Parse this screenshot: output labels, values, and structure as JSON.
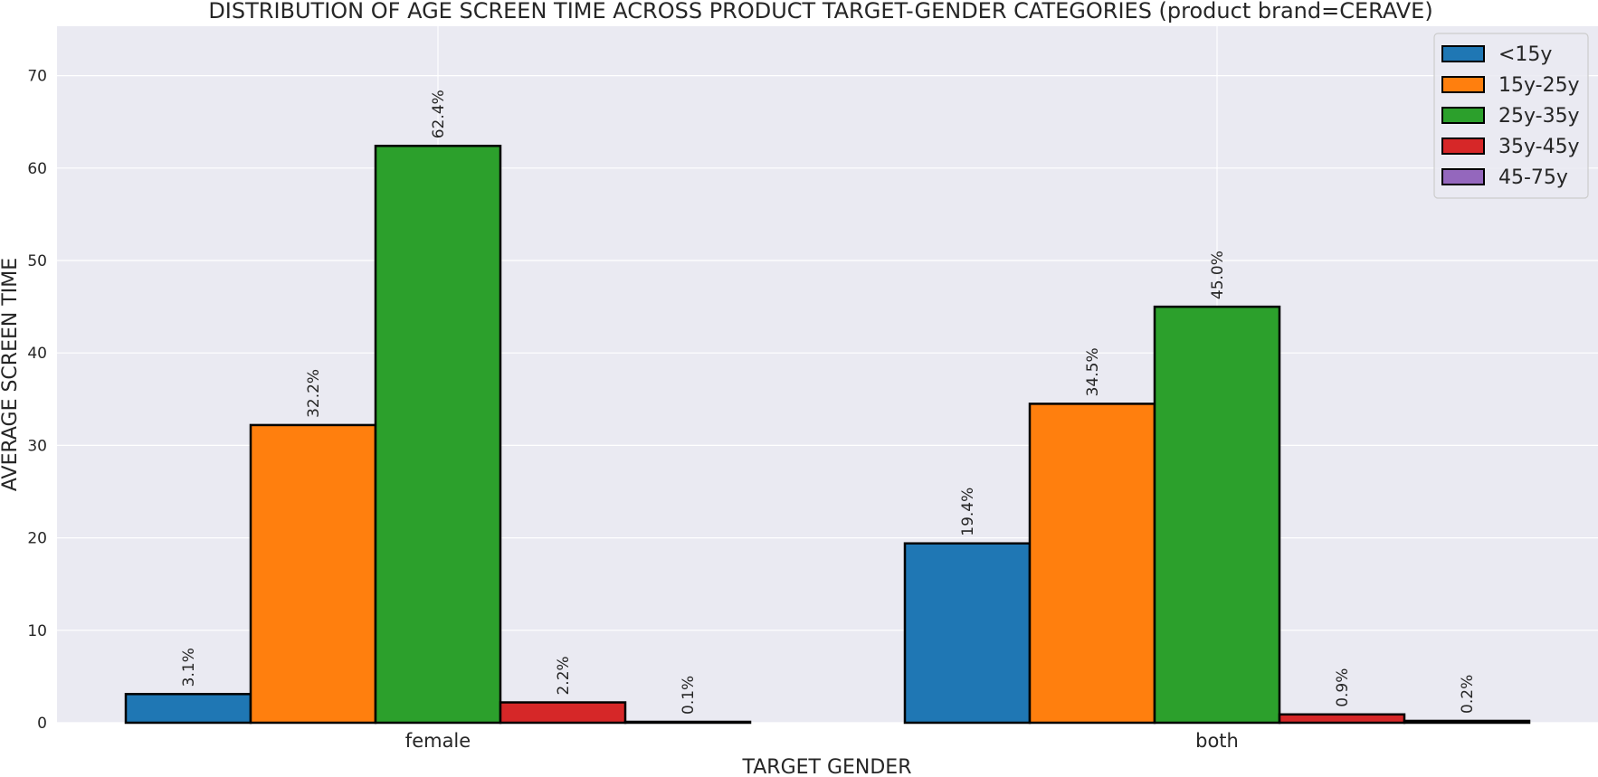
{
  "chart_data": {
    "type": "bar",
    "title": "DISTRIBUTION OF AGE SCREEN TIME ACROSS PRODUCT TARGET-GENDER CATEGORIES (product brand=CERAVE)",
    "xlabel": "TARGET GENDER",
    "ylabel": "AVERAGE SCREEN TIME",
    "categories": [
      "female",
      "both"
    ],
    "ylim": [
      0,
      75
    ],
    "yticks": [
      0,
      10,
      20,
      30,
      40,
      50,
      60,
      70
    ],
    "grid": true,
    "legend_position": "top-right",
    "series": [
      {
        "name": "<15y",
        "color": "#1f77b4",
        "values": [
          3.1,
          19.4
        ],
        "labels": [
          "3.1%",
          "19.4%"
        ]
      },
      {
        "name": "15y-25y",
        "color": "#ff7f0e",
        "values": [
          32.2,
          34.5
        ],
        "labels": [
          "32.2%",
          "34.5%"
        ]
      },
      {
        "name": "25y-35y",
        "color": "#2ca02c",
        "values": [
          62.4,
          45.0
        ],
        "labels": [
          "62.4%",
          "45.0%"
        ]
      },
      {
        "name": "35y-45y",
        "color": "#d62728",
        "values": [
          2.2,
          0.9
        ],
        "labels": [
          "2.2%",
          "0.9%"
        ]
      },
      {
        "name": "45-75y",
        "color": "#9467bd",
        "values": [
          0.1,
          0.2
        ],
        "labels": [
          "0.1%",
          "0.2%"
        ]
      }
    ]
  },
  "style": {
    "plot_background": "#eaeaf2",
    "grid_color": "#ffffff",
    "bar_edge_color": "#000000",
    "text_color": "#262626"
  }
}
